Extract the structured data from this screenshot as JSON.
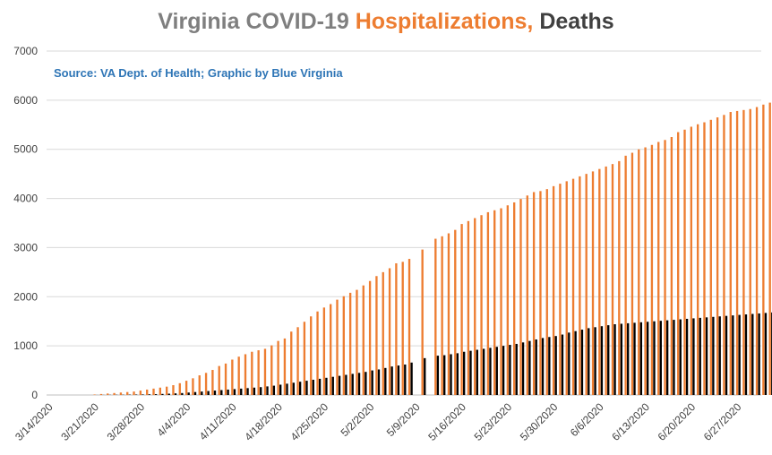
{
  "chart_data": {
    "type": "bar",
    "title_parts": [
      "Virginia COVID-19 ",
      "Hospitalizations, ",
      "Deaths"
    ],
    "subtitle": "Source: VA Dept. of Health; Graphic by Blue Virginia",
    "ylim": [
      0,
      7000
    ],
    "y_ticks": [
      "0",
      "1000",
      "2000",
      "3000",
      "4000",
      "5000",
      "6000",
      "7000"
    ],
    "x_tick_labels": [
      "3/14/2020",
      "3/21/2020",
      "3/28/2020",
      "4/4/2020",
      "4/11/2020",
      "4/18/2020",
      "4/25/2020",
      "5/2/2020",
      "5/9/2020",
      "5/16/2020",
      "5/23/2020",
      "5/30/2020",
      "6/6/2020",
      "6/13/2020",
      "6/20/2020",
      "6/27/2020"
    ],
    "x_start": "3/14/2020",
    "x_end": "6/30/2020",
    "colors": {
      "hospitalizations": "#ed7d31",
      "deaths": "#000000",
      "grid": "#d9d9d9"
    },
    "series": [
      {
        "name": "Hospitalizations",
        "start_date": "3/21/2020",
        "values": [
          10,
          20,
          30,
          40,
          50,
          60,
          70,
          90,
          110,
          130,
          150,
          170,
          200,
          240,
          290,
          340,
          400,
          450,
          510,
          590,
          640,
          720,
          780,
          830,
          880,
          910,
          940,
          1010,
          1100,
          1150,
          1290,
          1380,
          1490,
          1600,
          1700,
          1780,
          1850,
          1940,
          2010,
          2080,
          2140,
          2230,
          2320,
          2420,
          2500,
          2580,
          2680,
          2710,
          2770,
          null,
          2960,
          null,
          3180,
          3230,
          3290,
          3360,
          3480,
          3540,
          3600,
          3660,
          3720,
          3760,
          3800,
          3860,
          3920,
          3990,
          4060,
          4130,
          4150,
          4190,
          4250,
          4300,
          4350,
          4400,
          4450,
          4500,
          4550,
          4600,
          4650,
          4700,
          4760,
          4870,
          4930,
          5000,
          5040,
          5090,
          5150,
          5190,
          5250,
          5350,
          5400,
          5460,
          5510,
          5550,
          5600,
          5650,
          5700,
          5760,
          5780,
          5800,
          5820,
          5860,
          5910,
          5950,
          6000,
          6060,
          6100,
          6120,
          6160
        ]
      },
      {
        "name": "Deaths",
        "start_date": "3/21/2020",
        "values": [
          1,
          2,
          3,
          4,
          5,
          7,
          9,
          11,
          14,
          17,
          22,
          27,
          33,
          40,
          50,
          60,
          70,
          80,
          90,
          100,
          110,
          120,
          130,
          140,
          150,
          160,
          175,
          190,
          210,
          230,
          250,
          270,
          290,
          310,
          330,
          350,
          370,
          390,
          410,
          430,
          450,
          470,
          500,
          520,
          550,
          580,
          600,
          620,
          660,
          null,
          750,
          null,
          800,
          810,
          830,
          850,
          880,
          900,
          920,
          940,
          960,
          980,
          1000,
          1020,
          1040,
          1070,
          1100,
          1130,
          1160,
          1180,
          1200,
          1230,
          1270,
          1300,
          1330,
          1360,
          1380,
          1400,
          1420,
          1440,
          1450,
          1460,
          1470,
          1480,
          1490,
          1500,
          1510,
          1520,
          1530,
          1540,
          1550,
          1560,
          1570,
          1580,
          1590,
          1600,
          1610,
          1620,
          1630,
          1640,
          1650,
          1660,
          1670,
          1680,
          1690,
          1700,
          1710,
          1720,
          1740
        ]
      }
    ]
  }
}
